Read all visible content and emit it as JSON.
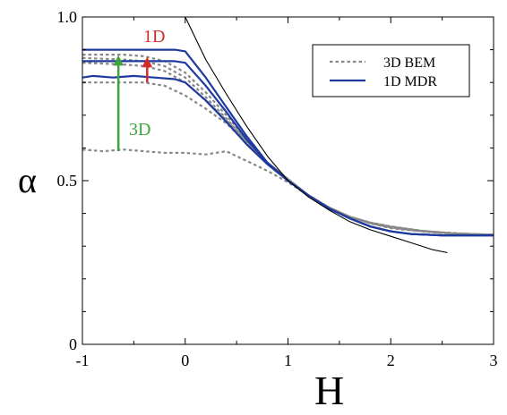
{
  "chart_data": {
    "type": "line",
    "xlabel": "H",
    "ylabel": "α",
    "xlim": [
      -1,
      3
    ],
    "ylim": [
      0,
      1
    ],
    "xticks": [
      -1,
      0,
      1,
      2,
      3
    ],
    "xtick_labels": [
      "-1",
      "0",
      "1",
      "2",
      "3"
    ],
    "yticks": [
      0,
      0.5,
      1
    ],
    "ytick_labels": [
      "0",
      "0.5",
      "1.0"
    ],
    "grid": false,
    "legend": {
      "placement": "top-right",
      "entries": [
        {
          "label": "3D BEM",
          "style": "dashed",
          "color": "#888888"
        },
        {
          "label": "1D MDR",
          "style": "solid",
          "color": "#1f3a9e"
        }
      ]
    },
    "annotations": [
      {
        "text": "1D",
        "color": "#d42a2a",
        "arrow_x": -0.37,
        "arrow_from": 0.8,
        "arrow_to": 0.875
      },
      {
        "text": "3D",
        "color": "#3ca43c",
        "arrow_x": -0.65,
        "arrow_from": 0.59,
        "arrow_to": 0.88
      }
    ],
    "series": [
      {
        "style": "dashed",
        "color": "#888888",
        "width": 2.2,
        "points": [
          [
            -1,
            0.595
          ],
          [
            -0.8,
            0.59
          ],
          [
            -0.6,
            0.595
          ],
          [
            -0.4,
            0.59
          ],
          [
            -0.2,
            0.585
          ],
          [
            0,
            0.585
          ],
          [
            0.2,
            0.58
          ],
          [
            0.4,
            0.59
          ],
          [
            0.5,
            0.575
          ],
          [
            0.6,
            0.56
          ],
          [
            0.8,
            0.53
          ],
          [
            1,
            0.495
          ],
          [
            1.2,
            0.455
          ],
          [
            1.4,
            0.415
          ],
          [
            1.6,
            0.39
          ],
          [
            1.8,
            0.37
          ],
          [
            2,
            0.355
          ],
          [
            2.2,
            0.348
          ],
          [
            2.5,
            0.342
          ],
          [
            2.8,
            0.337
          ],
          [
            3,
            0.335
          ]
        ]
      },
      {
        "style": "dashed",
        "color": "#888888",
        "width": 2.2,
        "points": [
          [
            -1,
            0.8
          ],
          [
            -0.6,
            0.8
          ],
          [
            -0.4,
            0.8
          ],
          [
            -0.2,
            0.79
          ],
          [
            0,
            0.76
          ],
          [
            0.2,
            0.72
          ],
          [
            0.4,
            0.675
          ],
          [
            0.6,
            0.615
          ],
          [
            0.8,
            0.55
          ],
          [
            1,
            0.5
          ],
          [
            1.2,
            0.455
          ],
          [
            1.4,
            0.418
          ],
          [
            1.6,
            0.39
          ],
          [
            1.8,
            0.37
          ],
          [
            2,
            0.357
          ],
          [
            2.3,
            0.345
          ],
          [
            2.6,
            0.338
          ],
          [
            3,
            0.335
          ]
        ]
      },
      {
        "style": "dashed",
        "color": "#888888",
        "width": 2.2,
        "points": [
          [
            -1,
            0.86
          ],
          [
            -0.6,
            0.855
          ],
          [
            -0.4,
            0.85
          ],
          [
            -0.2,
            0.835
          ],
          [
            0,
            0.8
          ],
          [
            0.2,
            0.745
          ],
          [
            0.4,
            0.685
          ],
          [
            0.6,
            0.62
          ],
          [
            0.8,
            0.555
          ],
          [
            1,
            0.505
          ],
          [
            1.2,
            0.455
          ],
          [
            1.4,
            0.418
          ],
          [
            1.6,
            0.39
          ],
          [
            1.8,
            0.37
          ],
          [
            2,
            0.357
          ],
          [
            2.3,
            0.346
          ],
          [
            2.6,
            0.338
          ],
          [
            3,
            0.335
          ]
        ]
      },
      {
        "style": "dashed",
        "color": "#888888",
        "width": 2.2,
        "points": [
          [
            -1,
            0.875
          ],
          [
            -0.6,
            0.87
          ],
          [
            -0.4,
            0.865
          ],
          [
            -0.2,
            0.85
          ],
          [
            0,
            0.815
          ],
          [
            0.2,
            0.755
          ],
          [
            0.4,
            0.69
          ],
          [
            0.6,
            0.62
          ],
          [
            0.8,
            0.555
          ],
          [
            1,
            0.505
          ],
          [
            1.2,
            0.455
          ],
          [
            1.4,
            0.418
          ],
          [
            1.6,
            0.39
          ],
          [
            1.8,
            0.372
          ],
          [
            2,
            0.36
          ],
          [
            2.3,
            0.347
          ],
          [
            2.6,
            0.339
          ],
          [
            3,
            0.335
          ]
        ]
      },
      {
        "style": "dashed",
        "color": "#888888",
        "width": 2.2,
        "points": [
          [
            -1,
            0.885
          ],
          [
            -0.6,
            0.885
          ],
          [
            -0.4,
            0.88
          ],
          [
            -0.2,
            0.865
          ],
          [
            0,
            0.83
          ],
          [
            0.2,
            0.77
          ],
          [
            0.4,
            0.7
          ],
          [
            0.6,
            0.625
          ],
          [
            0.8,
            0.555
          ],
          [
            1,
            0.505
          ],
          [
            1.2,
            0.455
          ],
          [
            1.4,
            0.418
          ],
          [
            1.6,
            0.39
          ],
          [
            1.8,
            0.372
          ],
          [
            2,
            0.36
          ],
          [
            2.3,
            0.347
          ],
          [
            2.6,
            0.339
          ],
          [
            3,
            0.335
          ]
        ]
      },
      {
        "style": "solid",
        "color": "#1f3a9e",
        "width": 2.2,
        "points": [
          [
            -1,
            0.815
          ],
          [
            -0.9,
            0.82
          ],
          [
            -0.7,
            0.815
          ],
          [
            -0.5,
            0.82
          ],
          [
            -0.3,
            0.815
          ],
          [
            -0.1,
            0.81
          ],
          [
            0,
            0.8
          ],
          [
            0.2,
            0.745
          ],
          [
            0.4,
            0.68
          ],
          [
            0.6,
            0.61
          ],
          [
            0.8,
            0.55
          ],
          [
            1,
            0.5
          ],
          [
            1.2,
            0.455
          ],
          [
            1.4,
            0.415
          ],
          [
            1.6,
            0.385
          ],
          [
            1.8,
            0.36
          ],
          [
            2,
            0.345
          ],
          [
            2.2,
            0.337
          ],
          [
            2.5,
            0.333
          ],
          [
            3,
            0.333
          ]
        ]
      },
      {
        "style": "solid",
        "color": "#1f3a9e",
        "width": 2.2,
        "points": [
          [
            -1,
            0.865
          ],
          [
            -0.7,
            0.865
          ],
          [
            -0.4,
            0.865
          ],
          [
            -0.1,
            0.865
          ],
          [
            0,
            0.86
          ],
          [
            0.2,
            0.79
          ],
          [
            0.4,
            0.71
          ],
          [
            0.6,
            0.625
          ],
          [
            0.8,
            0.555
          ],
          [
            1,
            0.5
          ],
          [
            1.2,
            0.455
          ],
          [
            1.4,
            0.415
          ],
          [
            1.6,
            0.385
          ],
          [
            1.8,
            0.36
          ],
          [
            2,
            0.345
          ],
          [
            2.2,
            0.337
          ],
          [
            2.5,
            0.333
          ],
          [
            3,
            0.333
          ]
        ]
      },
      {
        "style": "solid",
        "color": "#1f3a9e",
        "width": 2.2,
        "points": [
          [
            -1,
            0.9
          ],
          [
            -0.7,
            0.9
          ],
          [
            -0.4,
            0.9
          ],
          [
            -0.1,
            0.9
          ],
          [
            0,
            0.895
          ],
          [
            0.2,
            0.815
          ],
          [
            0.4,
            0.725
          ],
          [
            0.6,
            0.635
          ],
          [
            0.8,
            0.555
          ],
          [
            1,
            0.5
          ],
          [
            1.2,
            0.455
          ],
          [
            1.4,
            0.415
          ],
          [
            1.6,
            0.385
          ],
          [
            1.8,
            0.36
          ],
          [
            2,
            0.345
          ],
          [
            2.2,
            0.337
          ],
          [
            2.5,
            0.333
          ],
          [
            3,
            0.333
          ]
        ]
      },
      {
        "style": "solid",
        "color": "#000000",
        "width": 1.1,
        "points": [
          [
            0,
            1.0
          ],
          [
            0.2,
            0.87
          ],
          [
            0.4,
            0.765
          ],
          [
            0.6,
            0.665
          ],
          [
            0.8,
            0.575
          ],
          [
            1,
            0.5
          ],
          [
            1.2,
            0.45
          ],
          [
            1.4,
            0.41
          ],
          [
            1.6,
            0.375
          ],
          [
            1.8,
            0.35
          ],
          [
            2,
            0.33
          ],
          [
            2.2,
            0.31
          ],
          [
            2.4,
            0.29
          ],
          [
            2.55,
            0.28
          ]
        ]
      }
    ]
  }
}
